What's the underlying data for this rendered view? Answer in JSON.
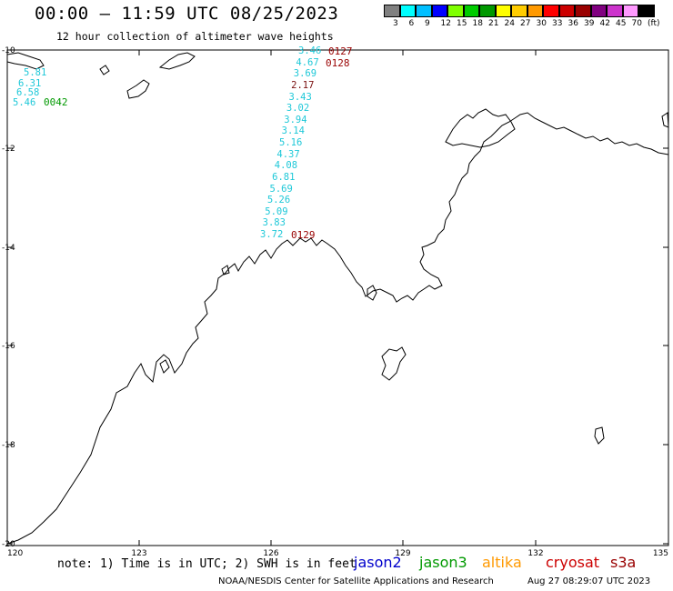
{
  "header": {
    "title": "00:00 – 11:59 UTC 08/25/2023",
    "subtitle": "12 hour collection of altimeter wave heights"
  },
  "colorbar": {
    "colors": [
      "#808080",
      "#00ffff",
      "#00bfff",
      "#0000ff",
      "#7fff00",
      "#00cc00",
      "#009900",
      "#ffff00",
      "#ffcc00",
      "#ff9900",
      "#ff0000",
      "#cc0000",
      "#990000",
      "#800080",
      "#cc33cc",
      "#ff99ff",
      "#000000"
    ],
    "labels": [
      "3",
      "6",
      "9",
      "12",
      "15",
      "18",
      "21",
      "24",
      "27",
      "30",
      "33",
      "36",
      "39",
      "42",
      "45",
      "70",
      "(ft)"
    ]
  },
  "axes": {
    "lat_labels": [
      "-10",
      "-12",
      "-14",
      "-16",
      "-18",
      "-20"
    ],
    "lon_labels": [
      "120",
      "123",
      "126",
      "129",
      "132",
      "135"
    ]
  },
  "tracks": {
    "labels": [
      {
        "text": "0127",
        "color": "#990000"
      },
      {
        "text": "0128",
        "color": "#990000"
      },
      {
        "text": "0129",
        "color": "#990000"
      },
      {
        "text": "0042",
        "color": "#009900"
      }
    ],
    "swh_left": [
      "5.81",
      "6.31",
      "6.58",
      "5.46"
    ],
    "swh_center": [
      "3.46",
      "4.67",
      "3.69",
      "2.17",
      "3.43",
      "3.02",
      "3.94",
      "3.14",
      "5.16",
      "4.37",
      "4.08",
      "6.81",
      "5.69",
      "5.26",
      "5.09",
      "3.83",
      "3.72"
    ],
    "swh_center_colors": [
      "#1ec8d8",
      "#1ec8d8",
      "#1ec8d8",
      "#7a1010",
      "#1ec8d8",
      "#1ec8d8",
      "#1ec8d8",
      "#1ec8d8",
      "#1ec8d8",
      "#1ec8d8",
      "#1ec8d8",
      "#1ec8d8",
      "#1ec8d8",
      "#1ec8d8",
      "#1ec8d8",
      "#1ec8d8",
      "#1ec8d8"
    ]
  },
  "footer": {
    "note": "note: 1) Time is in UTC; 2) SWH is in feet",
    "satellites": [
      {
        "name": "jason2",
        "color": "#0000cc"
      },
      {
        "name": "jason3",
        "color": "#009900"
      },
      {
        "name": "altika",
        "color": "#ff9900"
      },
      {
        "name": "cryosat",
        "color": "#cc0000"
      },
      {
        "name": "s3a",
        "color": "#990000"
      }
    ],
    "credit": "NOAA/NESDIS Center for Satellite Applications and Research",
    "timestamp": "Aug 27 08:29:07 UTC 2023"
  }
}
